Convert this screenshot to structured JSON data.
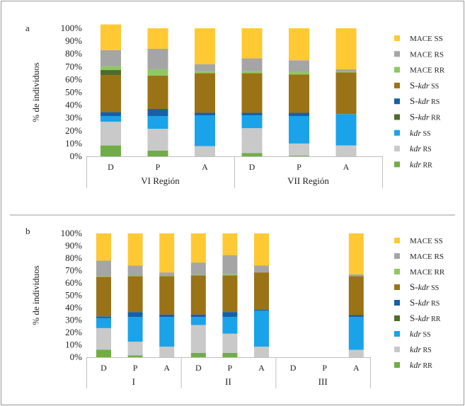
{
  "chart_data": [
    {
      "type": "bar",
      "panel_label": "a",
      "ylabel": "% de individuos",
      "yticks": [
        "0%",
        "10%",
        "20%",
        "30%",
        "40%",
        "50%",
        "60%",
        "70%",
        "80%",
        "90%",
        "100%"
      ],
      "ylim": [
        0,
        100
      ],
      "stacked": true,
      "groups": [
        {
          "label": "VI Región",
          "categories": [
            "D",
            "P",
            "A"
          ]
        },
        {
          "label": "VII Región",
          "categories": [
            "D",
            "P",
            "A"
          ]
        }
      ],
      "bars": [
        {
          "category": "D",
          "values": [
            8.5,
            0,
            18.5,
            4.5,
            0,
            3,
            29,
            4,
            3,
            12.5,
            20
          ],
          "visible": true
        },
        {
          "category": "P",
          "values": [
            4.5,
            0,
            17,
            10,
            0,
            5.5,
            26,
            0,
            5,
            16,
            16
          ],
          "visible": true
        },
        {
          "category": "A",
          "values": [
            0,
            0,
            8,
            24,
            0,
            2,
            31,
            0,
            1.5,
            5.5,
            28
          ],
          "visible": true
        },
        {
          "category": "D",
          "values": [
            2.5,
            0,
            19.5,
            10,
            0,
            2,
            31,
            0,
            1.5,
            10,
            23.5
          ],
          "visible": true
        },
        {
          "category": "P",
          "values": [
            0.5,
            0,
            9.5,
            21.5,
            0,
            2.5,
            30,
            0,
            2,
            9,
            25
          ],
          "visible": true
        },
        {
          "category": "A",
          "values": [
            0,
            0,
            8.5,
            24.5,
            0,
            0,
            32.5,
            0,
            0.5,
            2,
            32
          ],
          "visible": true
        }
      ]
    },
    {
      "type": "bar",
      "panel_label": "b",
      "ylabel": "% de individuos",
      "yticks": [
        "0%",
        "10%",
        "20%",
        "30%",
        "40%",
        "50%",
        "60%",
        "70%",
        "80%",
        "90%",
        "100%"
      ],
      "ylim": [
        0,
        100
      ],
      "stacked": true,
      "groups": [
        {
          "label": "I",
          "categories": [
            "D",
            "P",
            "A"
          ]
        },
        {
          "label": "II",
          "categories": [
            "D",
            "P",
            "A"
          ]
        },
        {
          "label": "III",
          "categories": [
            "D",
            "P",
            "A"
          ]
        }
      ],
      "bars": [
        {
          "category": "D",
          "values": [
            6,
            0,
            17.5,
            8,
            0,
            1.5,
            32,
            0,
            0.5,
            12.5,
            22
          ],
          "visible": true
        },
        {
          "category": "P",
          "values": [
            1.5,
            0,
            11,
            20,
            0,
            4,
            29,
            0,
            0.5,
            8,
            26
          ],
          "visible": true
        },
        {
          "category": "A",
          "values": [
            0,
            0,
            8.5,
            24,
            0,
            2,
            31,
            0,
            0.5,
            2.5,
            31.5
          ],
          "visible": true
        },
        {
          "category": "D",
          "values": [
            3.5,
            0,
            22.5,
            6.5,
            0,
            2,
            31.5,
            0,
            0.5,
            10,
            23.5
          ],
          "visible": true
        },
        {
          "category": "P",
          "values": [
            3.5,
            0,
            15.5,
            13.5,
            0,
            4,
            29.5,
            0,
            1,
            15.5,
            17.5
          ],
          "visible": true
        },
        {
          "category": "A",
          "values": [
            0,
            0,
            8.5,
            29,
            0,
            1,
            30,
            0,
            0,
            5.5,
            26
          ],
          "visible": true
        },
        {
          "category": "D",
          "values": [
            0,
            0,
            0,
            0,
            0,
            0,
            0,
            0,
            0,
            0,
            0
          ],
          "visible": false
        },
        {
          "category": "P",
          "values": [
            0,
            0,
            0,
            0,
            0,
            0,
            0,
            0,
            0,
            0,
            0
          ],
          "visible": false
        },
        {
          "category": "A",
          "values": [
            0,
            0,
            6,
            26.5,
            0,
            1.5,
            31.5,
            0,
            0,
            1.5,
            33
          ],
          "visible": true
        }
      ]
    }
  ],
  "series": [
    {
      "key": "kdr_rr",
      "name_prefix": "",
      "name_italic": "kdr",
      "name_suffix": " RR",
      "color": "#70ad47"
    },
    {
      "key": "s_kdr_rr",
      "name_prefix": "S-",
      "name_italic": "kdr",
      "name_suffix": " RR",
      "color": "#4e6d2a"
    },
    {
      "key": "kdr_rs",
      "name_prefix": "",
      "name_italic": "kdr",
      "name_suffix": " RS",
      "color": "#c9c9c9"
    },
    {
      "key": "kdr_ss",
      "name_prefix": "",
      "name_italic": "kdr",
      "name_suffix": " SS",
      "color": "#1aa3e8"
    },
    {
      "key": "s_kdr_rs_gap",
      "name_prefix": "",
      "name_italic": "",
      "name_suffix": "",
      "color": "#ffffff"
    },
    {
      "key": "s_kdr_rs",
      "name_prefix": "S-",
      "name_italic": "kdr",
      "name_suffix": " RS",
      "color": "#1760a5"
    },
    {
      "key": "s_kdr_ss",
      "name_prefix": "S-",
      "name_italic": "kdr",
      "name_suffix": " SS",
      "color": "#9a7317"
    },
    {
      "key": "s_kdr_rr_2",
      "name_prefix": "",
      "name_italic": "",
      "name_suffix": "",
      "color": "#4e6d2a"
    },
    {
      "key": "mace_rr",
      "name_prefix": "MACE RR",
      "name_italic": "",
      "name_suffix": "",
      "color": "#8fc862"
    },
    {
      "key": "mace_rs",
      "name_prefix": "MACE RS",
      "name_italic": "",
      "name_suffix": "",
      "color": "#a5a5a5"
    },
    {
      "key": "mace_ss",
      "name_prefix": "MACE SS",
      "name_italic": "",
      "name_suffix": "",
      "color": "#ffc933"
    }
  ],
  "legend_order": [
    "mace_ss",
    "mace_rs",
    "mace_rr",
    "s_kdr_ss",
    "s_kdr_rs",
    "s_kdr_rr",
    "kdr_ss",
    "kdr_rs",
    "kdr_rr"
  ]
}
